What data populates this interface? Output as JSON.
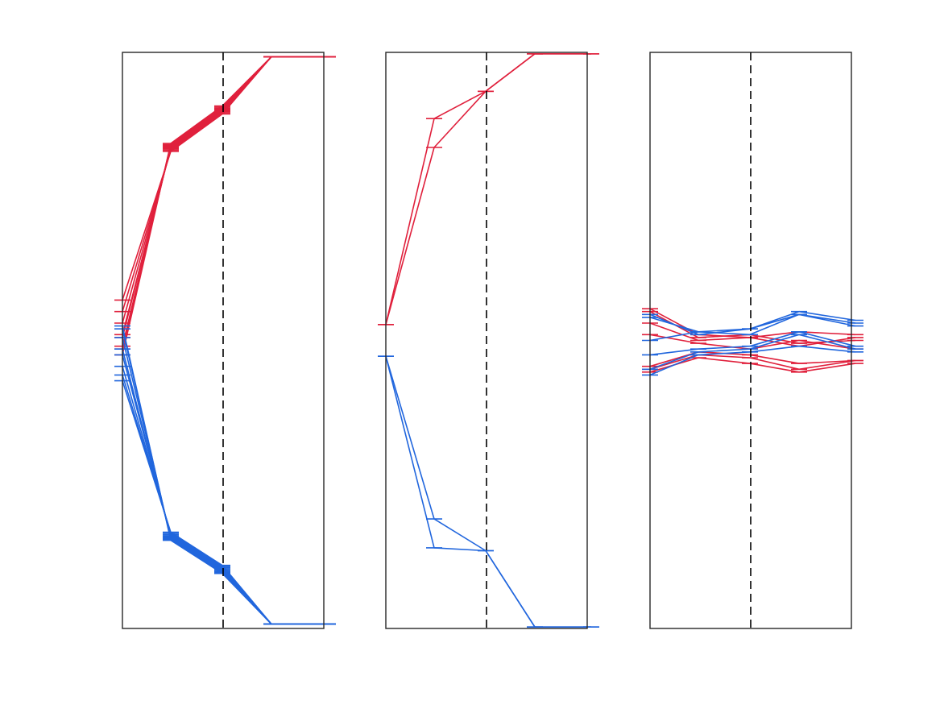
{
  "colors": {
    "red_series": "#e0203c",
    "blue_series": "#2166dd",
    "frame": "#262626",
    "divider": "#000000"
  },
  "chart_data": [
    {
      "type": "line",
      "x_points": [
        0,
        1,
        2,
        3,
        4
      ],
      "xlim": [
        0,
        4
      ],
      "ylim": [
        -1,
        1
      ],
      "divider_x": 2,
      "axis_ticks_visible": false,
      "grid": false,
      "legend": "none",
      "bundles": [
        {
          "color": "red",
          "count": 8,
          "start": [
            0.14,
            0.1,
            0.06,
            0.02,
            0.01,
            -0.02,
            -0.03,
            -0.05
          ],
          "path": [
            0.67,
            0.8,
            0.985,
            0.985
          ]
        },
        {
          "color": "blue",
          "count": 8,
          "start": [
            0.05,
            0.04,
            0.01,
            -0.03,
            -0.05,
            -0.09,
            -0.12,
            -0.14
          ],
          "path": [
            -0.68,
            -0.795,
            -0.985,
            -0.985
          ]
        }
      ]
    },
    {
      "type": "line",
      "x_points": [
        0,
        1,
        2,
        3,
        4
      ],
      "xlim": [
        0,
        4
      ],
      "ylim": [
        -1,
        1
      ],
      "divider_x": 2,
      "axis_ticks_visible": false,
      "grid": false,
      "legend": "none",
      "lines": [
        {
          "color": "red",
          "y": [
            0.055,
            0.67,
            0.865,
            0.995,
            0.995
          ]
        },
        {
          "color": "red",
          "y": [
            0.055,
            0.77,
            0.865,
            0.995,
            0.995
          ]
        },
        {
          "color": "blue",
          "y": [
            -0.055,
            -0.62,
            -0.73,
            -0.995,
            -0.995
          ]
        },
        {
          "color": "blue",
          "y": [
            -0.055,
            -0.72,
            -0.73,
            -0.995,
            -0.995
          ]
        }
      ]
    },
    {
      "type": "line",
      "x_points": [
        0,
        1,
        2,
        3,
        4
      ],
      "xlim": [
        0,
        4
      ],
      "ylim": [
        -1,
        1
      ],
      "divider_x": 2,
      "axis_ticks_visible": false,
      "grid": false,
      "legend": "none",
      "lines": [
        {
          "color": "red",
          "y": [
            0.11,
            0.02,
            0.01,
            -0.02,
            0.01
          ]
        },
        {
          "color": "red",
          "y": [
            0.1,
            0.01,
            0.02,
            -0.01,
            0.0
          ]
        },
        {
          "color": "red",
          "y": [
            0.06,
            0.0,
            0.01,
            0.03,
            0.02
          ]
        },
        {
          "color": "red",
          "y": [
            0.02,
            -0.01,
            -0.03,
            0.0,
            -0.03
          ]
        },
        {
          "color": "red",
          "y": [
            -0.09,
            -0.04,
            -0.05,
            -0.08,
            -0.07
          ]
        },
        {
          "color": "red",
          "y": [
            -0.1,
            -0.05,
            -0.06,
            -0.1,
            -0.07
          ]
        },
        {
          "color": "red",
          "y": [
            -0.11,
            -0.06,
            -0.08,
            -0.11,
            -0.08
          ]
        },
        {
          "color": "blue",
          "y": [
            0.08,
            0.03,
            0.02,
            0.09,
            0.06
          ]
        },
        {
          "color": "blue",
          "y": [
            0.09,
            0.02,
            0.04,
            0.1,
            0.07
          ]
        },
        {
          "color": "blue",
          "y": [
            0.0,
            0.03,
            0.04,
            0.09,
            0.05
          ]
        },
        {
          "color": "blue",
          "y": [
            -0.05,
            -0.03,
            -0.02,
            0.03,
            -0.02
          ]
        },
        {
          "color": "blue",
          "y": [
            -0.1,
            -0.04,
            -0.03,
            0.02,
            -0.03
          ]
        },
        {
          "color": "blue",
          "y": [
            -0.12,
            -0.05,
            -0.04,
            -0.02,
            -0.04
          ]
        }
      ]
    }
  ]
}
